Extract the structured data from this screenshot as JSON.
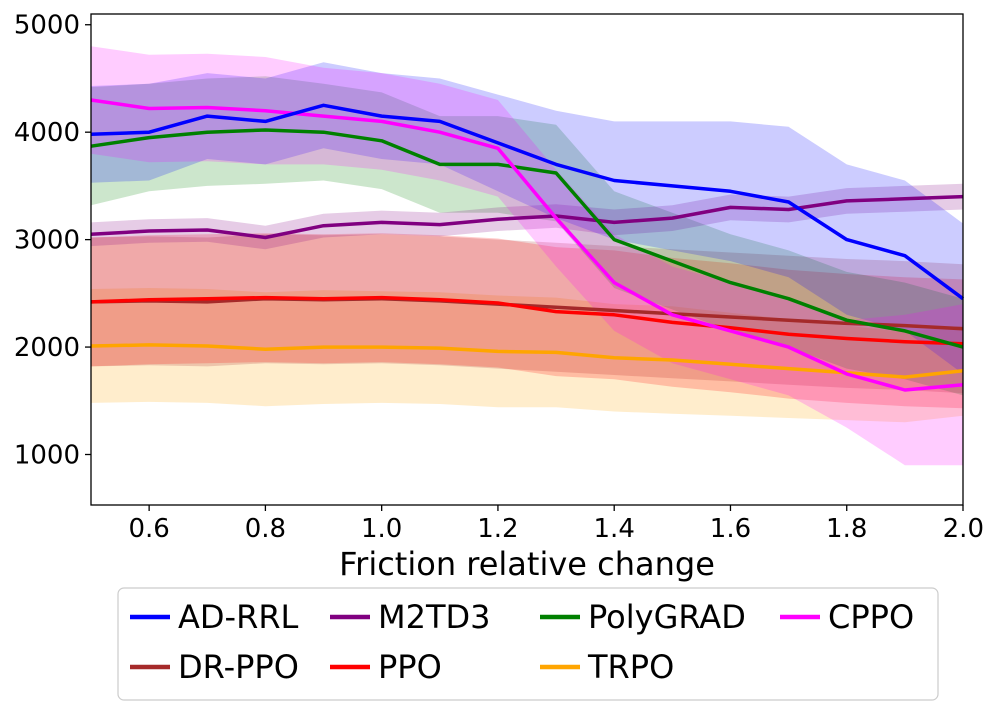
{
  "chart_data": {
    "type": "line",
    "title": "",
    "xlabel": "Friction relative change",
    "ylabel": "",
    "xlim": [
      0.5,
      2.0
    ],
    "ylim": [
      530,
      5100
    ],
    "xticks": [
      0.6,
      0.8,
      1.0,
      1.2,
      1.4,
      1.6,
      1.8,
      2.0
    ],
    "xtick_labels": [
      "0.6",
      "0.8",
      "1.0",
      "1.2",
      "1.4",
      "1.6",
      "1.8",
      "2.0"
    ],
    "yticks": [
      1000,
      2000,
      3000,
      4000,
      5000
    ],
    "ytick_labels": [
      "1000",
      "2000",
      "3000",
      "4000",
      "5000"
    ],
    "grid": false,
    "legend_position": "bottom",
    "x": [
      0.5,
      0.6,
      0.7,
      0.8,
      0.9,
      1.0,
      1.1,
      1.2,
      1.3,
      1.4,
      1.5,
      1.6,
      1.7,
      1.8,
      1.9,
      2.0
    ],
    "series": [
      {
        "name": "AD-RRL",
        "color": "#0000ff",
        "values": [
          3980,
          4000,
          4150,
          4100,
          4250,
          4150,
          4100,
          3900,
          3700,
          3550,
          3500,
          3450,
          3350,
          3000,
          2850,
          2450
        ],
        "band_half_width": [
          450,
          450,
          400,
          400,
          400,
          400,
          400,
          450,
          500,
          550,
          600,
          650,
          700,
          700,
          700,
          700
        ]
      },
      {
        "name": "M2TD3",
        "color": "#800080",
        "values": [
          3050,
          3080,
          3090,
          3020,
          3130,
          3160,
          3140,
          3190,
          3220,
          3160,
          3200,
          3300,
          3280,
          3360,
          3380,
          3400
        ],
        "band_half_width": [
          110,
          110,
          110,
          110,
          110,
          110,
          110,
          110,
          110,
          120,
          120,
          120,
          120,
          120,
          120,
          120
        ]
      },
      {
        "name": "PolyGRAD",
        "color": "#008000",
        "values": [
          3870,
          3950,
          4000,
          4020,
          4000,
          3920,
          3700,
          3700,
          3620,
          3000,
          2800,
          2600,
          2450,
          2250,
          2150,
          2000
        ],
        "band_half_width": [
          550,
          500,
          500,
          500,
          450,
          450,
          450,
          450,
          450,
          450,
          450,
          450,
          450,
          450,
          450,
          450
        ]
      },
      {
        "name": "CPPO",
        "color": "#ff00ff",
        "values": [
          4300,
          4220,
          4230,
          4200,
          4150,
          4100,
          4000,
          3850,
          3200,
          2600,
          2300,
          2150,
          2000,
          1750,
          1600,
          1650
        ],
        "band_half_width": [
          500,
          500,
          500,
          500,
          450,
          450,
          450,
          450,
          450,
          450,
          450,
          450,
          450,
          500,
          700,
          750
        ]
      },
      {
        "name": "DR-PPO",
        "color": "#a52a2a",
        "values": [
          2420,
          2430,
          2420,
          2450,
          2440,
          2450,
          2430,
          2400,
          2370,
          2340,
          2310,
          2280,
          2250,
          2220,
          2200,
          2170
        ],
        "band_half_width": [
          600,
          600,
          600,
          600,
          600,
          600,
          600,
          600,
          600,
          600,
          600,
          600,
          600,
          600,
          600,
          600
        ]
      },
      {
        "name": "PPO",
        "color": "#ff0000",
        "values": [
          2420,
          2440,
          2450,
          2460,
          2450,
          2460,
          2440,
          2410,
          2330,
          2300,
          2230,
          2180,
          2120,
          2080,
          2050,
          2030
        ],
        "band_half_width": [
          600,
          600,
          600,
          600,
          600,
          600,
          600,
          600,
          600,
          600,
          600,
          600,
          600,
          600,
          600,
          600
        ]
      },
      {
        "name": "TRPO",
        "color": "#ffa500",
        "values": [
          2010,
          2020,
          2010,
          1980,
          2000,
          2000,
          1990,
          1960,
          1950,
          1900,
          1880,
          1840,
          1800,
          1760,
          1720,
          1780
        ],
        "band_half_width": [
          530,
          530,
          530,
          530,
          530,
          520,
          520,
          520,
          510,
          500,
          500,
          480,
          460,
          440,
          420,
          420
        ]
      }
    ]
  }
}
